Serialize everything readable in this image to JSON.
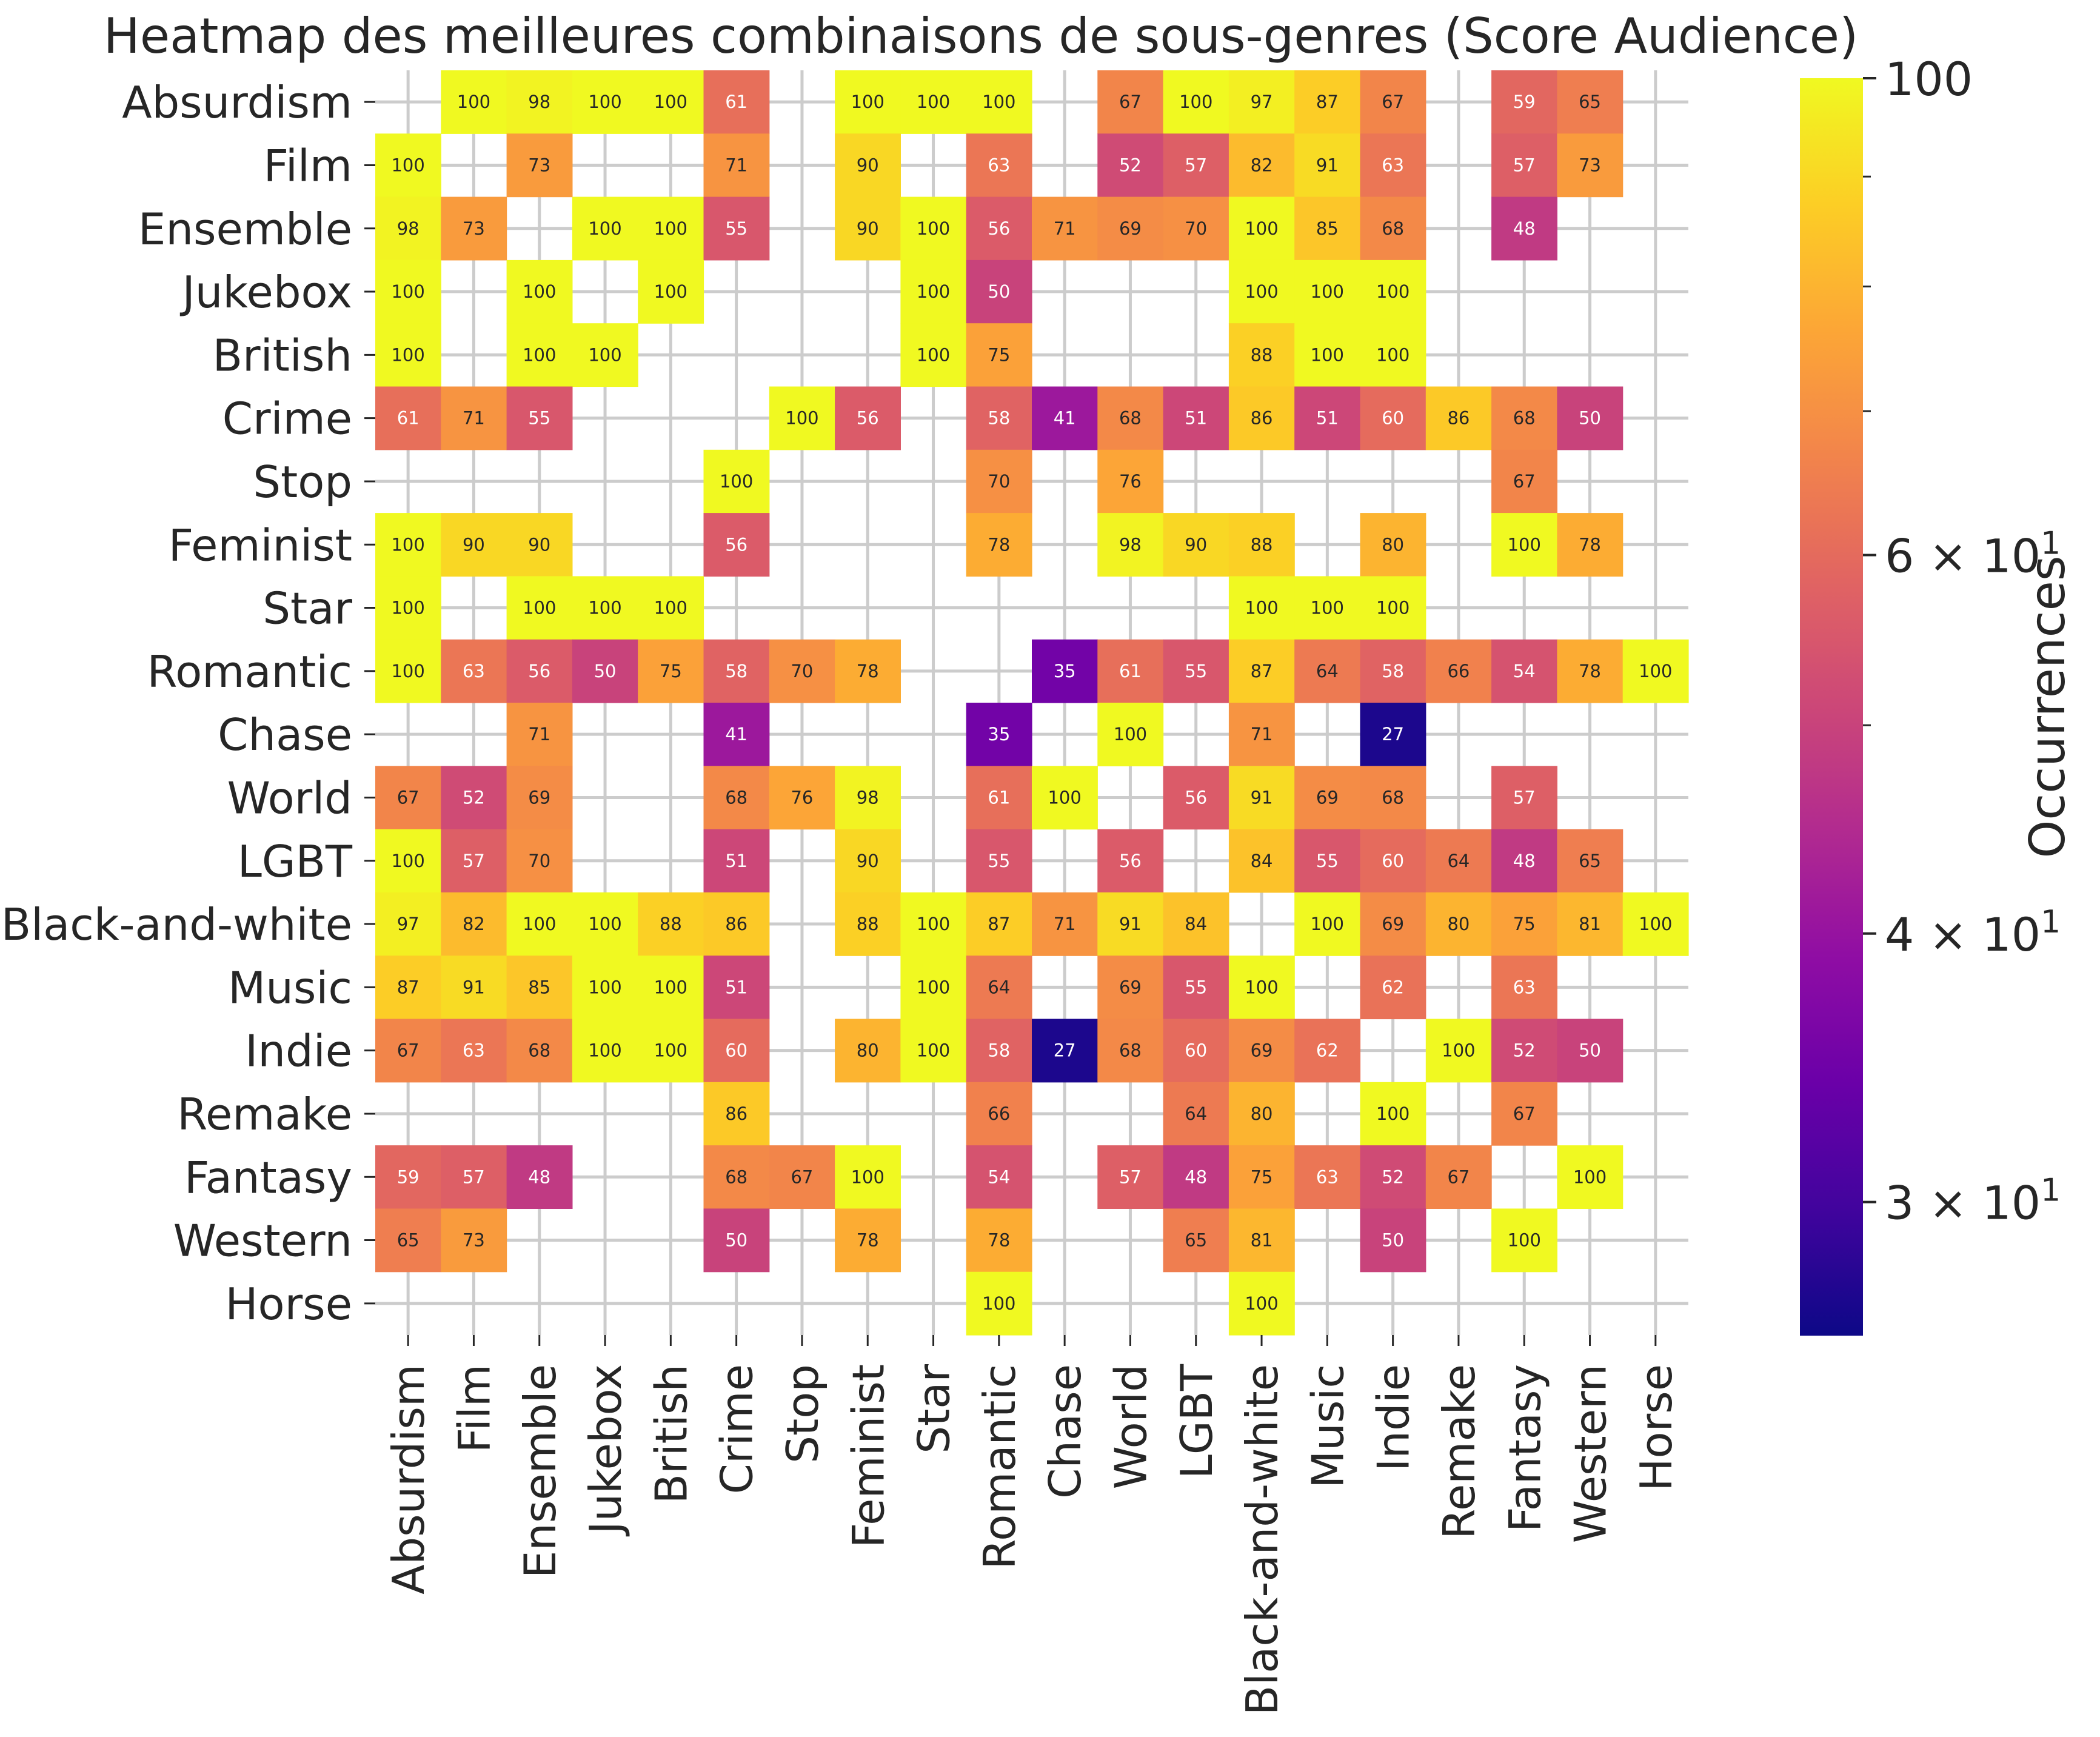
{
  "chart_data": {
    "type": "heatmap",
    "title": "Heatmap des meilleures combinaisons de sous-genres (Score Audience)",
    "xlabel": "",
    "ylabel": "",
    "row_labels": [
      "Absurdism",
      "Film",
      "Ensemble",
      "Jukebox",
      "British",
      "Crime",
      "Stop",
      "Feminist",
      "Star",
      "Romantic",
      "Chase",
      "World",
      "LGBT",
      "Black-and-white",
      "Music",
      "Indie",
      "Remake",
      "Fantasy",
      "Western",
      "Horse"
    ],
    "col_labels": [
      "Absurdism",
      "Film",
      "Ensemble",
      "Jukebox",
      "British",
      "Crime",
      "Stop",
      "Feminist",
      "Star",
      "Romantic",
      "Chase",
      "World",
      "LGBT",
      "Black-and-white",
      "Music",
      "Indie",
      "Remake",
      "Fantasy",
      "Western",
      "Horse"
    ],
    "values": [
      [
        null,
        100,
        98,
        100,
        100,
        61,
        null,
        100,
        100,
        100,
        null,
        67,
        100,
        97,
        87,
        67,
        null,
        59,
        65,
        null
      ],
      [
        100,
        null,
        73,
        null,
        null,
        71,
        null,
        90,
        null,
        63,
        null,
        52,
        57,
        82,
        91,
        63,
        null,
        57,
        73,
        null
      ],
      [
        98,
        73,
        null,
        100,
        100,
        55,
        null,
        90,
        100,
        56,
        71,
        69,
        70,
        100,
        85,
        68,
        null,
        48,
        null,
        null
      ],
      [
        100,
        null,
        100,
        null,
        100,
        null,
        null,
        null,
        100,
        50,
        null,
        null,
        null,
        100,
        100,
        100,
        null,
        null,
        null,
        null
      ],
      [
        100,
        null,
        100,
        100,
        null,
        null,
        null,
        null,
        100,
        75,
        null,
        null,
        null,
        88,
        100,
        100,
        null,
        null,
        null,
        null
      ],
      [
        61,
        71,
        55,
        null,
        null,
        null,
        100,
        56,
        null,
        58,
        41,
        68,
        51,
        86,
        51,
        60,
        86,
        68,
        50,
        null
      ],
      [
        null,
        null,
        null,
        null,
        null,
        100,
        null,
        null,
        null,
        70,
        null,
        76,
        null,
        null,
        null,
        null,
        null,
        67,
        null,
        null
      ],
      [
        100,
        90,
        90,
        null,
        null,
        56,
        null,
        null,
        null,
        78,
        null,
        98,
        90,
        88,
        null,
        80,
        null,
        100,
        78,
        null
      ],
      [
        100,
        null,
        100,
        100,
        100,
        null,
        null,
        null,
        null,
        null,
        null,
        null,
        null,
        100,
        100,
        100,
        null,
        null,
        null,
        null
      ],
      [
        100,
        63,
        56,
        50,
        75,
        58,
        70,
        78,
        null,
        null,
        35,
        61,
        55,
        87,
        64,
        58,
        66,
        54,
        78,
        100
      ],
      [
        null,
        null,
        71,
        null,
        null,
        41,
        null,
        null,
        null,
        35,
        null,
        100,
        null,
        71,
        null,
        27,
        null,
        null,
        null,
        null
      ],
      [
        67,
        52,
        69,
        null,
        null,
        68,
        76,
        98,
        null,
        61,
        100,
        null,
        56,
        91,
        69,
        68,
        null,
        57,
        null,
        null
      ],
      [
        100,
        57,
        70,
        null,
        null,
        51,
        null,
        90,
        null,
        55,
        null,
        56,
        null,
        84,
        55,
        60,
        64,
        48,
        65,
        null
      ],
      [
        97,
        82,
        100,
        100,
        88,
        86,
        null,
        88,
        100,
        87,
        71,
        91,
        84,
        null,
        100,
        69,
        80,
        75,
        81,
        100
      ],
      [
        87,
        91,
        85,
        100,
        100,
        51,
        null,
        null,
        100,
        64,
        null,
        69,
        55,
        100,
        null,
        62,
        null,
        63,
        null,
        null
      ],
      [
        67,
        63,
        68,
        100,
        100,
        60,
        null,
        80,
        100,
        58,
        27,
        68,
        60,
        69,
        62,
        null,
        100,
        52,
        50,
        null
      ],
      [
        null,
        null,
        null,
        null,
        null,
        86,
        null,
        null,
        null,
        66,
        null,
        null,
        64,
        80,
        null,
        100,
        null,
        67,
        null,
        null
      ],
      [
        59,
        57,
        48,
        null,
        null,
        68,
        67,
        100,
        null,
        54,
        null,
        57,
        48,
        75,
        63,
        52,
        67,
        null,
        100,
        null
      ],
      [
        65,
        73,
        null,
        null,
        null,
        50,
        null,
        78,
        null,
        78,
        null,
        null,
        65,
        81,
        null,
        50,
        null,
        100,
        null,
        null
      ],
      [
        null,
        null,
        null,
        null,
        null,
        null,
        null,
        null,
        null,
        100,
        null,
        null,
        null,
        100,
        null,
        null,
        null,
        null,
        null,
        null
      ]
    ],
    "colorbar": {
      "label": "Occurrences",
      "scale": "log",
      "colormap": "plasma",
      "range": [
        26,
        100
      ],
      "major_ticks": [
        {
          "value": 30,
          "label": "3 × 10",
          "exp": "1"
        },
        {
          "value": 40,
          "label": "4 × 10",
          "exp": "1"
        },
        {
          "value": 60,
          "label": "6 × 10",
          "exp": "1"
        },
        {
          "value": 100,
          "label": "100",
          "exp": ""
        }
      ],
      "minor_ticks": [
        50,
        70,
        80,
        90
      ]
    },
    "grid": true,
    "missing_color": "#ffffff"
  }
}
